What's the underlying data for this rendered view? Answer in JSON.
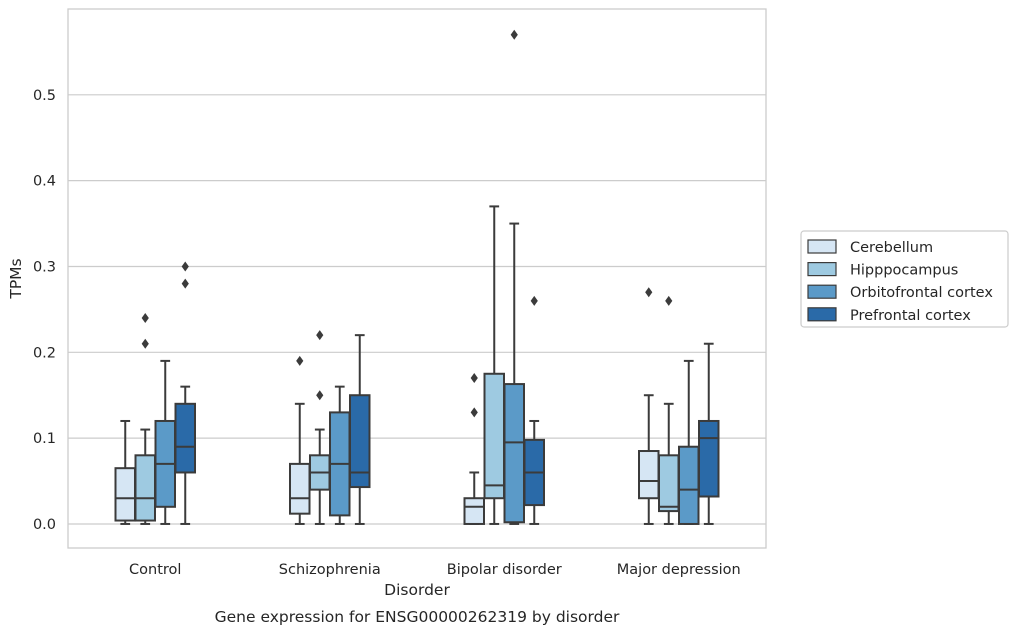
{
  "chart_data": {
    "type": "box",
    "caption": "Gene expression for ENSG00000262319 by disorder",
    "xlabel": "Disorder",
    "ylabel": "TPMs",
    "ylim": [
      -0.028,
      0.6
    ],
    "yticks": [
      "0.0",
      "0.1",
      "0.2",
      "0.3",
      "0.4",
      "0.5"
    ],
    "categories": [
      "Control",
      "Schizophrenia",
      "Bipolar disorder",
      "Major depression"
    ],
    "grid": "horizontal",
    "legend_position": "right",
    "series": [
      {
        "name": "Cerebellum",
        "color": "#d6e6f4",
        "boxes": [
          {
            "min": 0.0,
            "q1": 0.004,
            "median": 0.03,
            "q3": 0.065,
            "max": 0.12,
            "outliers": []
          },
          {
            "min": 0.0,
            "q1": 0.012,
            "median": 0.03,
            "q3": 0.07,
            "max": 0.14,
            "outliers": [
              0.19
            ]
          },
          {
            "min": 0.0,
            "q1": 0.0,
            "median": 0.02,
            "q3": 0.03,
            "max": 0.06,
            "outliers": [
              0.13,
              0.17
            ]
          },
          {
            "min": 0.0,
            "q1": 0.03,
            "median": 0.05,
            "q3": 0.085,
            "max": 0.15,
            "outliers": [
              0.27
            ]
          }
        ]
      },
      {
        "name": "Hipppocampus",
        "color": "#9ecae1",
        "boxes": [
          {
            "min": 0.0,
            "q1": 0.004,
            "median": 0.03,
            "q3": 0.08,
            "max": 0.11,
            "outliers": [
              0.21,
              0.24
            ]
          },
          {
            "min": 0.0,
            "q1": 0.04,
            "median": 0.06,
            "q3": 0.08,
            "max": 0.11,
            "outliers": [
              0.15,
              0.22
            ]
          },
          {
            "min": 0.0,
            "q1": 0.03,
            "median": 0.045,
            "q3": 0.175,
            "max": 0.37,
            "outliers": []
          },
          {
            "min": 0.0,
            "q1": 0.015,
            "median": 0.02,
            "q3": 0.08,
            "max": 0.14,
            "outliers": [
              0.26
            ]
          }
        ]
      },
      {
        "name": "Orbitofrontal cortex",
        "color": "#5b9ac8",
        "boxes": [
          {
            "min": 0.0,
            "q1": 0.02,
            "median": 0.07,
            "q3": 0.12,
            "max": 0.19,
            "outliers": []
          },
          {
            "min": 0.0,
            "q1": 0.01,
            "median": 0.07,
            "q3": 0.13,
            "max": 0.16,
            "outliers": []
          },
          {
            "min": 0.0,
            "q1": 0.002,
            "median": 0.095,
            "q3": 0.163,
            "max": 0.35,
            "outliers": [
              0.57
            ]
          },
          {
            "min": 0.0,
            "q1": 0.0,
            "median": 0.04,
            "q3": 0.09,
            "max": 0.19,
            "outliers": []
          }
        ]
      },
      {
        "name": "Prefrontal cortex",
        "color": "#2a6aa8",
        "boxes": [
          {
            "min": 0.0,
            "q1": 0.06,
            "median": 0.09,
            "q3": 0.14,
            "max": 0.16,
            "outliers": [
              0.28,
              0.3
            ]
          },
          {
            "min": 0.0,
            "q1": 0.043,
            "median": 0.06,
            "q3": 0.15,
            "max": 0.22,
            "outliers": []
          },
          {
            "min": 0.0,
            "q1": 0.022,
            "median": 0.06,
            "q3": 0.098,
            "max": 0.12,
            "outliers": [
              0.26
            ]
          },
          {
            "min": 0.0,
            "q1": 0.032,
            "median": 0.1,
            "q3": 0.12,
            "max": 0.21,
            "outliers": []
          }
        ]
      }
    ]
  }
}
